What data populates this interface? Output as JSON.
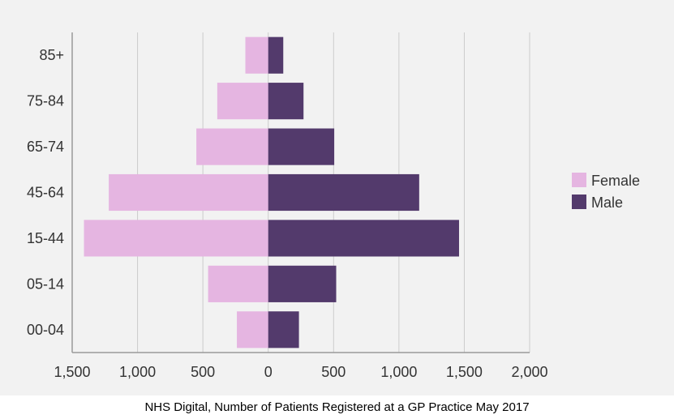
{
  "chart_data": {
    "type": "bar",
    "orientation": "horizontal",
    "layout": "population-pyramid",
    "categories": [
      "85+",
      "75-84",
      "65-74",
      "45-64",
      "15-44",
      "05-14",
      "00-04"
    ],
    "series": [
      {
        "name": "Female",
        "values": [
          175,
          390,
          550,
          1220,
          1410,
          460,
          240
        ]
      },
      {
        "name": "Male",
        "values": [
          115,
          270,
          505,
          1155,
          1460,
          520,
          235
        ]
      }
    ],
    "x_ticks": [
      "1,500",
      "1,000",
      "500",
      "0",
      "500",
      "1,000",
      "1,500",
      "2,000"
    ],
    "x_tick_values": [
      -1500,
      -1000,
      -500,
      0,
      500,
      1000,
      1500,
      2000
    ],
    "xlim": [
      -1500,
      2000
    ],
    "grid": true,
    "legend_position": "right",
    "colors": {
      "Female": "#e5b5e1",
      "Male": "#533a6c",
      "grid": "#cccccc",
      "background": "#f2f2f2"
    }
  },
  "caption": "NHS Digital, Number of Patients Registered at a GP Practice May 2017"
}
